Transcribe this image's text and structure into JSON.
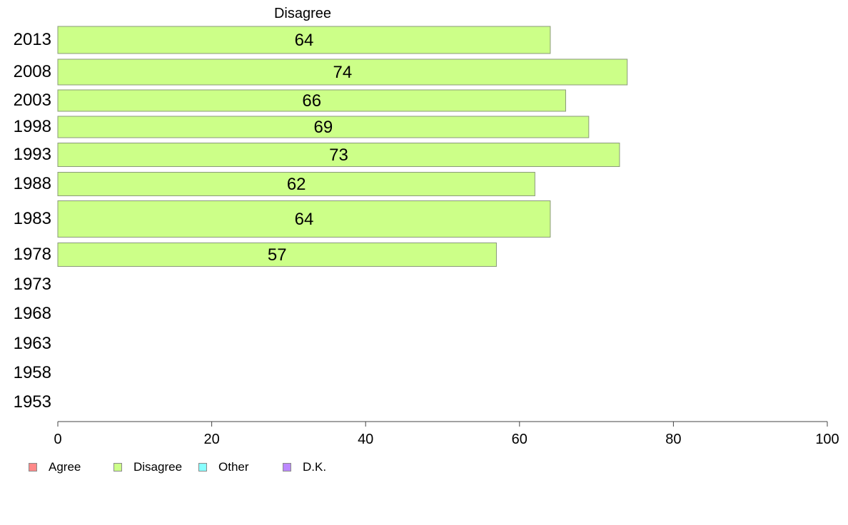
{
  "chart_data": {
    "type": "bar",
    "orientation": "horizontal",
    "title": "Disagree",
    "categories": [
      "2013",
      "2008",
      "2003",
      "1998",
      "1993",
      "1988",
      "1983",
      "1978",
      "1973",
      "1968",
      "1963",
      "1958",
      "1953"
    ],
    "series": [
      {
        "name": "Disagree",
        "color": "#ccff88",
        "values": [
          64,
          74,
          66,
          69,
          73,
          62,
          64,
          57,
          null,
          null,
          null,
          null,
          null
        ],
        "labels": [
          "64",
          "74",
          "66",
          "69",
          "73",
          "62",
          "64",
          "57",
          "",
          "",
          "",
          "",
          ""
        ]
      }
    ],
    "xlim": [
      0,
      100
    ],
    "xticks": [
      "0",
      "20",
      "40",
      "60",
      "80",
      "100"
    ],
    "grid": false,
    "legend_position": "bottom-left",
    "legend": [
      {
        "label": "Agree",
        "color": "#ff8888"
      },
      {
        "label": "Disagree",
        "color": "#ccff88"
      },
      {
        "label": "Other",
        "color": "#88ffff"
      },
      {
        "label": "D.K.",
        "color": "#bb88ff"
      }
    ]
  }
}
